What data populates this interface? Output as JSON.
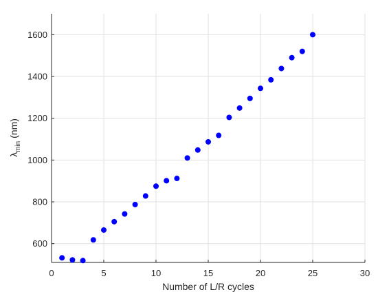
{
  "chart_data": {
    "type": "scatter",
    "xlabel": "Number of L/R cycles",
    "ylabel_symbol": "λ",
    "ylabel_subscript": "min",
    "ylabel_unit": " (nm)",
    "xlim": [
      0,
      30
    ],
    "ylim": [
      510,
      1700
    ],
    "xticks": [
      0,
      5,
      10,
      15,
      20,
      25,
      30
    ],
    "yticks": [
      600,
      800,
      1000,
      1200,
      1400,
      1600
    ],
    "grid": true,
    "marker_color": "#0000ff",
    "series": [
      {
        "x": [
          1,
          2,
          3,
          4,
          5,
          6,
          7,
          8,
          9,
          10,
          11,
          12,
          13,
          14,
          15,
          16,
          17,
          18,
          19,
          20,
          21,
          22,
          23,
          24,
          25
        ],
        "y": [
          532,
          522,
          519,
          618,
          665,
          705,
          742,
          787,
          828,
          875,
          901,
          912,
          1010,
          1048,
          1087,
          1118,
          1204,
          1249,
          1295,
          1343,
          1384,
          1438,
          1490,
          1520,
          1600
        ]
      }
    ]
  }
}
